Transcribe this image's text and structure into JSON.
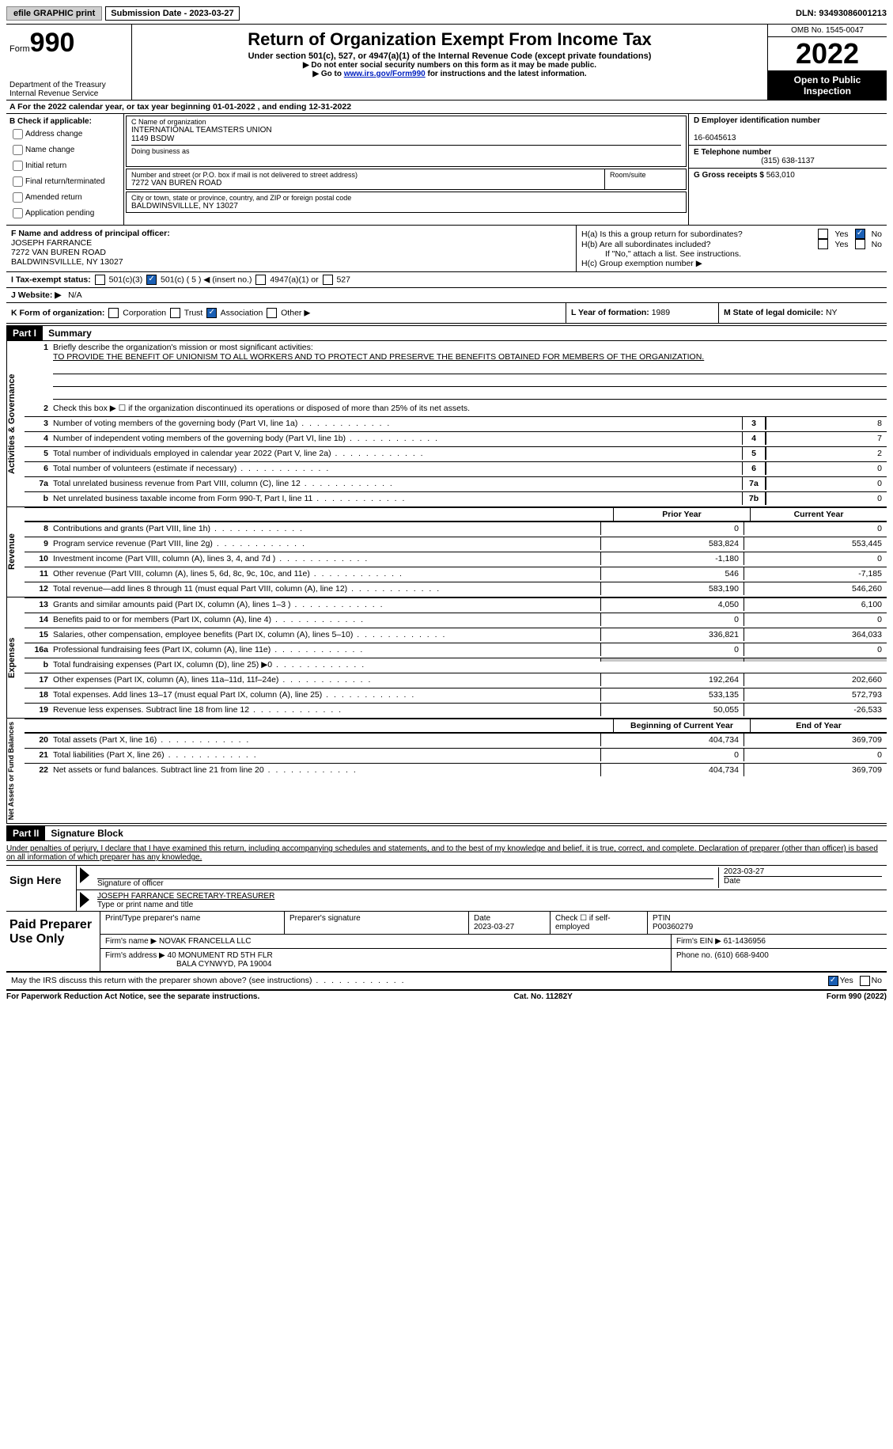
{
  "topbar": {
    "efile": "efile GRAPHIC print",
    "submission": "Submission Date - 2023-03-27",
    "dln": "DLN: 93493086001213"
  },
  "header": {
    "form_prefix": "Form",
    "form_num": "990",
    "title": "Return of Organization Exempt From Income Tax",
    "sub1": "Under section 501(c), 527, or 4947(a)(1) of the Internal Revenue Code (except private foundations)",
    "sub2a": "▶ Do not enter social security numbers on this form as it may be made public.",
    "sub2b_pre": "▶ Go to ",
    "sub2b_link": "www.irs.gov/Form990",
    "sub2b_post": " for instructions and the latest information.",
    "dept": "Department of the Treasury\nInternal Revenue Service",
    "omb": "OMB No. 1545-0047",
    "year": "2022",
    "open": "Open to Public Inspection"
  },
  "cal": "A For the 2022 calendar year, or tax year beginning 01-01-2022     , and ending 12-31-2022",
  "B": {
    "label": "B Check if applicable:",
    "items": [
      "Address change",
      "Name change",
      "Initial return",
      "Final return/terminated",
      "Amended return",
      "Application pending"
    ]
  },
  "C": {
    "name_lbl": "C Name of organization",
    "name1": "INTERNATIONAL TEAMSTERS UNION",
    "name2": "1149 BSDW",
    "dba_lbl": "Doing business as",
    "addr_lbl": "Number and street (or P.O. box if mail is not delivered to street address)",
    "room_lbl": "Room/suite",
    "addr": "7272 VAN BUREN ROAD",
    "city_lbl": "City or town, state or province, country, and ZIP or foreign postal code",
    "city": "BALDWINSVILLLE, NY  13027"
  },
  "D": {
    "ein_lbl": "D Employer identification number",
    "ein": "16-6045613",
    "tel_lbl": "E Telephone number",
    "tel": "(315) 638-1137",
    "gross_lbl": "G Gross receipts $",
    "gross": "563,010"
  },
  "F": {
    "lbl": "F Name and address of principal officer:",
    "name": "JOSEPH FARRANCE",
    "addr1": "7272 VAN BUREN ROAD",
    "addr2": "BALDWINSVILLLE, NY  13027"
  },
  "H": {
    "a": "H(a)  Is this a group return for subordinates?",
    "b": "H(b)  Are all subordinates included?",
    "note": "If \"No,\" attach a list. See instructions.",
    "c": "H(c)  Group exemption number ▶"
  },
  "I": {
    "lbl": "I   Tax-exempt status:",
    "opts": [
      "501(c)(3)",
      "501(c) ( 5 ) ◀ (insert no.)",
      "4947(a)(1) or",
      "527"
    ]
  },
  "J": {
    "lbl": "J   Website: ▶",
    "val": "N/A"
  },
  "K": {
    "lbl": "K Form of organization:",
    "opts": [
      "Corporation",
      "Trust",
      "Association",
      "Other ▶"
    ]
  },
  "L": {
    "lbl": "L Year of formation:",
    "val": "1989"
  },
  "M": {
    "lbl": "M State of legal domicile:",
    "val": "NY"
  },
  "partI": {
    "hdr": "Part I",
    "title": "Summary"
  },
  "summary": {
    "line1_lbl": "Briefly describe the organization's mission or most significant activities:",
    "line1_txt": "TO PROVIDE THE BENEFIT OF UNIONISM TO ALL WORKERS AND TO PROTECT AND PRESERVE THE BENEFITS OBTAINED FOR MEMBERS OF THE ORGANIZATION.",
    "line2": "Check this box ▶ ☐  if the organization discontinued its operations or disposed of more than 25% of its net assets.",
    "rows_gov": [
      {
        "n": "3",
        "d": "Number of voting members of the governing body (Part VI, line 1a)",
        "b": "3",
        "v": "8"
      },
      {
        "n": "4",
        "d": "Number of independent voting members of the governing body (Part VI, line 1b)",
        "b": "4",
        "v": "7"
      },
      {
        "n": "5",
        "d": "Total number of individuals employed in calendar year 2022 (Part V, line 2a)",
        "b": "5",
        "v": "2"
      },
      {
        "n": "6",
        "d": "Total number of volunteers (estimate if necessary)",
        "b": "6",
        "v": "0"
      },
      {
        "n": "7a",
        "d": "Total unrelated business revenue from Part VIII, column (C), line 12",
        "b": "7a",
        "v": "0"
      },
      {
        "n": "b",
        "d": "Net unrelated business taxable income from Form 990-T, Part I, line 11",
        "b": "7b",
        "v": "0"
      }
    ],
    "prior_hdr": "Prior Year",
    "curr_hdr": "Current Year",
    "revenue": [
      {
        "n": "8",
        "d": "Contributions and grants (Part VIII, line 1h)",
        "p": "0",
        "c": "0"
      },
      {
        "n": "9",
        "d": "Program service revenue (Part VIII, line 2g)",
        "p": "583,824",
        "c": "553,445"
      },
      {
        "n": "10",
        "d": "Investment income (Part VIII, column (A), lines 3, 4, and 7d )",
        "p": "-1,180",
        "c": "0"
      },
      {
        "n": "11",
        "d": "Other revenue (Part VIII, column (A), lines 5, 6d, 8c, 9c, 10c, and 11e)",
        "p": "546",
        "c": "-7,185"
      },
      {
        "n": "12",
        "d": "Total revenue—add lines 8 through 11 (must equal Part VIII, column (A), line 12)",
        "p": "583,190",
        "c": "546,260"
      }
    ],
    "expenses": [
      {
        "n": "13",
        "d": "Grants and similar amounts paid (Part IX, column (A), lines 1–3 )",
        "p": "4,050",
        "c": "6,100"
      },
      {
        "n": "14",
        "d": "Benefits paid to or for members (Part IX, column (A), line 4)",
        "p": "0",
        "c": "0"
      },
      {
        "n": "15",
        "d": "Salaries, other compensation, employee benefits (Part IX, column (A), lines 5–10)",
        "p": "336,821",
        "c": "364,033"
      },
      {
        "n": "16a",
        "d": "Professional fundraising fees (Part IX, column (A), line 11e)",
        "p": "0",
        "c": "0"
      },
      {
        "n": "b",
        "d": "Total fundraising expenses (Part IX, column (D), line 25) ▶0",
        "p": "",
        "c": "",
        "shade": true
      },
      {
        "n": "17",
        "d": "Other expenses (Part IX, column (A), lines 11a–11d, 11f–24e)",
        "p": "192,264",
        "c": "202,660"
      },
      {
        "n": "18",
        "d": "Total expenses. Add lines 13–17 (must equal Part IX, column (A), line 25)",
        "p": "533,135",
        "c": "572,793"
      },
      {
        "n": "19",
        "d": "Revenue less expenses. Subtract line 18 from line 12",
        "p": "50,055",
        "c": "-26,533"
      }
    ],
    "net_hdr1": "Beginning of Current Year",
    "net_hdr2": "End of Year",
    "net": [
      {
        "n": "20",
        "d": "Total assets (Part X, line 16)",
        "p": "404,734",
        "c": "369,709"
      },
      {
        "n": "21",
        "d": "Total liabilities (Part X, line 26)",
        "p": "0",
        "c": "0"
      },
      {
        "n": "22",
        "d": "Net assets or fund balances. Subtract line 21 from line 20",
        "p": "404,734",
        "c": "369,709"
      }
    ],
    "vlabels": {
      "gov": "Activities & Governance",
      "rev": "Revenue",
      "exp": "Expenses",
      "net": "Net Assets or Fund Balances"
    }
  },
  "partII": {
    "hdr": "Part II",
    "title": "Signature Block"
  },
  "sig": {
    "decl": "Under penalties of perjury, I declare that I have examined this return, including accompanying schedules and statements, and to the best of my knowledge and belief, it is true, correct, and complete. Declaration of preparer (other than officer) is based on all information of which preparer has any knowledge.",
    "sign_here": "Sign Here",
    "sig_lbl": "Signature of officer",
    "date_lbl": "Date",
    "date": "2023-03-27",
    "name": "JOSEPH FARRANCE  SECRETARY-TREASURER",
    "name_lbl": "Type or print name and title"
  },
  "paid": {
    "title": "Paid Preparer Use Only",
    "print_lbl": "Print/Type preparer's name",
    "sig_lbl": "Preparer's signature",
    "date_lbl": "Date",
    "date": "2023-03-27",
    "check_lbl": "Check ☐ if self-employed",
    "ptin_lbl": "PTIN",
    "ptin": "P00360279",
    "firm_lbl": "Firm's name    ▶",
    "firm": "NOVAK FRANCELLA LLC",
    "ein_lbl": "Firm's EIN ▶",
    "ein": "61-1436956",
    "addr_lbl": "Firm's address ▶",
    "addr1": "40 MONUMENT RD 5TH FLR",
    "addr2": "BALA CYNWYD, PA  19004",
    "phone_lbl": "Phone no.",
    "phone": "(610) 668-9400"
  },
  "may": "May the IRS discuss this return with the preparer shown above? (see instructions)",
  "footer": {
    "pra": "For Paperwork Reduction Act Notice, see the separate instructions.",
    "cat": "Cat. No. 11282Y",
    "form": "Form 990 (2022)"
  }
}
